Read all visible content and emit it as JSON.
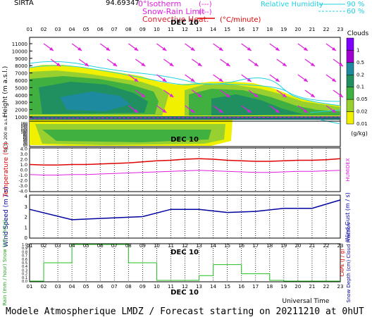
{
  "header": {
    "station": "SIRTA",
    "number_label": "94.69347",
    "legend_isotherm": "0°Isotherm",
    "legend_snowrain": "Snow-Rain Limit",
    "legend_convective": "Convective Heat.",
    "legend_units": "(°C/minute)",
    "legend_rh": "Relative Humidity",
    "rh_90": "90 %",
    "rh_60": "60 %",
    "dash_sample": "(---)"
  },
  "colors": {
    "magenta": "#e020e0",
    "cyan": "#20d0e0",
    "red": "#e00000",
    "navy": "#0000a0",
    "green_rain": "#20c020"
  },
  "footer": {
    "model_text": "Modele Atmospherique LMDZ / Forecast starting on 20211210 at 0hUT",
    "universal_time": "Universal Time"
  },
  "chart_data": [
    {
      "type": "heatmap",
      "name": "clouds",
      "date_label": "DEC 10",
      "hours": [
        "01",
        "02",
        "03",
        "04",
        "05",
        "06",
        "07",
        "08",
        "09",
        "10",
        "11",
        "12",
        "13",
        "14",
        "15",
        "16",
        "17",
        "18",
        "19",
        "20",
        "21",
        "22",
        "23"
      ],
      "ylabel": "Height (m a.s.l.)",
      "ylabel_low": "Up to 200 m a.s.l.",
      "yticks_upper": [
        "11000",
        "10000",
        "9000",
        "8000",
        "7000",
        "6000",
        "5000",
        "4000",
        "3000",
        "2000",
        "1000"
      ],
      "yticks_lower": [
        "160",
        "150",
        "140",
        "130",
        "120",
        "110",
        "100",
        "90",
        "80",
        "70",
        "60",
        "50",
        "40",
        "30",
        "20",
        "10"
      ],
      "colorbar_title": "Clouds",
      "colorbar_units": "(g/kg)",
      "colorbar_levels": [
        "1",
        "0.5",
        "0.2",
        "0.1",
        "0.05",
        "0.02",
        "0.01"
      ],
      "colorbar_colors": [
        "#8000ff",
        "#a000d0",
        "#1e8aa0",
        "#209060",
        "#40b040",
        "#98d030",
        "#f0f000"
      ]
    },
    {
      "type": "line",
      "name": "temperature",
      "ylabel": "Temperature (°C)",
      "ylabel_right": "HUMIDEX",
      "yticks": [
        "4.0",
        "3.0",
        "2.0",
        "1.0",
        "0.0",
        "-1.0",
        "-2.0",
        "-3.0",
        "-4.0"
      ],
      "ylim": [
        -4,
        4
      ],
      "series": [
        {
          "values": [
            1.0,
            0.9,
            0.9,
            1.0,
            1.0,
            1.1,
            1.2,
            1.3,
            1.5,
            1.7,
            1.8,
            2.0,
            2.1,
            2.0,
            1.8,
            1.7,
            1.6,
            1.6,
            1.7,
            1.8,
            1.8,
            1.9,
            2.1
          ]
        },
        {
          "values": [
            -0.9,
            -1.0,
            -1.0,
            -0.9,
            -0.9,
            -0.8,
            -0.7,
            -0.6,
            -0.5,
            -0.4,
            -0.3,
            -0.2,
            -0.1,
            -0.2,
            -0.3,
            -0.4,
            -0.5,
            -0.5,
            -0.4,
            -0.3,
            -0.3,
            -0.2,
            -0.1
          ]
        }
      ]
    },
    {
      "type": "line",
      "name": "wind",
      "ylabel": "Wind Speed (m / s)",
      "ylabel_right": "Wind Gust (m / s)",
      "yticks": [
        "4",
        "3",
        "2",
        "1",
        "0"
      ],
      "ylim": [
        0,
        4
      ],
      "x": [
        1,
        4,
        9,
        11,
        13,
        15,
        17,
        19,
        21,
        23
      ],
      "values": [
        2.7,
        1.7,
        2.0,
        2.7,
        2.7,
        2.4,
        2.5,
        2.8,
        2.8,
        3.6
      ]
    },
    {
      "type": "bar",
      "name": "precipitation",
      "date_label": "DEC 10",
      "ylabel": "Rain (mm / hour) Snow (cm / hour)",
      "ylabel_right": "Snow Depth (cm) Cloud Fraction",
      "ylabel_right2": "CAPE (J / g)",
      "yticks": [
        "1.0",
        "0.9",
        "0.8",
        "0.7",
        "0.6",
        "0.5",
        "0.4",
        "0.3",
        "0.2",
        "0.1",
        "0.0"
      ],
      "ylim": [
        0,
        1
      ],
      "xlabel": "Universal Time",
      "hours": [
        "01",
        "02",
        "03",
        "04",
        "05",
        "06",
        "07",
        "08",
        "09",
        "10",
        "11",
        "12",
        "13",
        "14",
        "15",
        "16",
        "17",
        "18",
        "19",
        "20",
        "21",
        "22",
        "23"
      ],
      "cloud_fraction": [
        0,
        0.5,
        0.5,
        1.0,
        1.0,
        1.0,
        1.0,
        0.5,
        0.5,
        0.02,
        0.02,
        0.02,
        0.15,
        0.45,
        0.45,
        0.2,
        0.2,
        0.02,
        0,
        0,
        0,
        0,
        0
      ]
    }
  ]
}
